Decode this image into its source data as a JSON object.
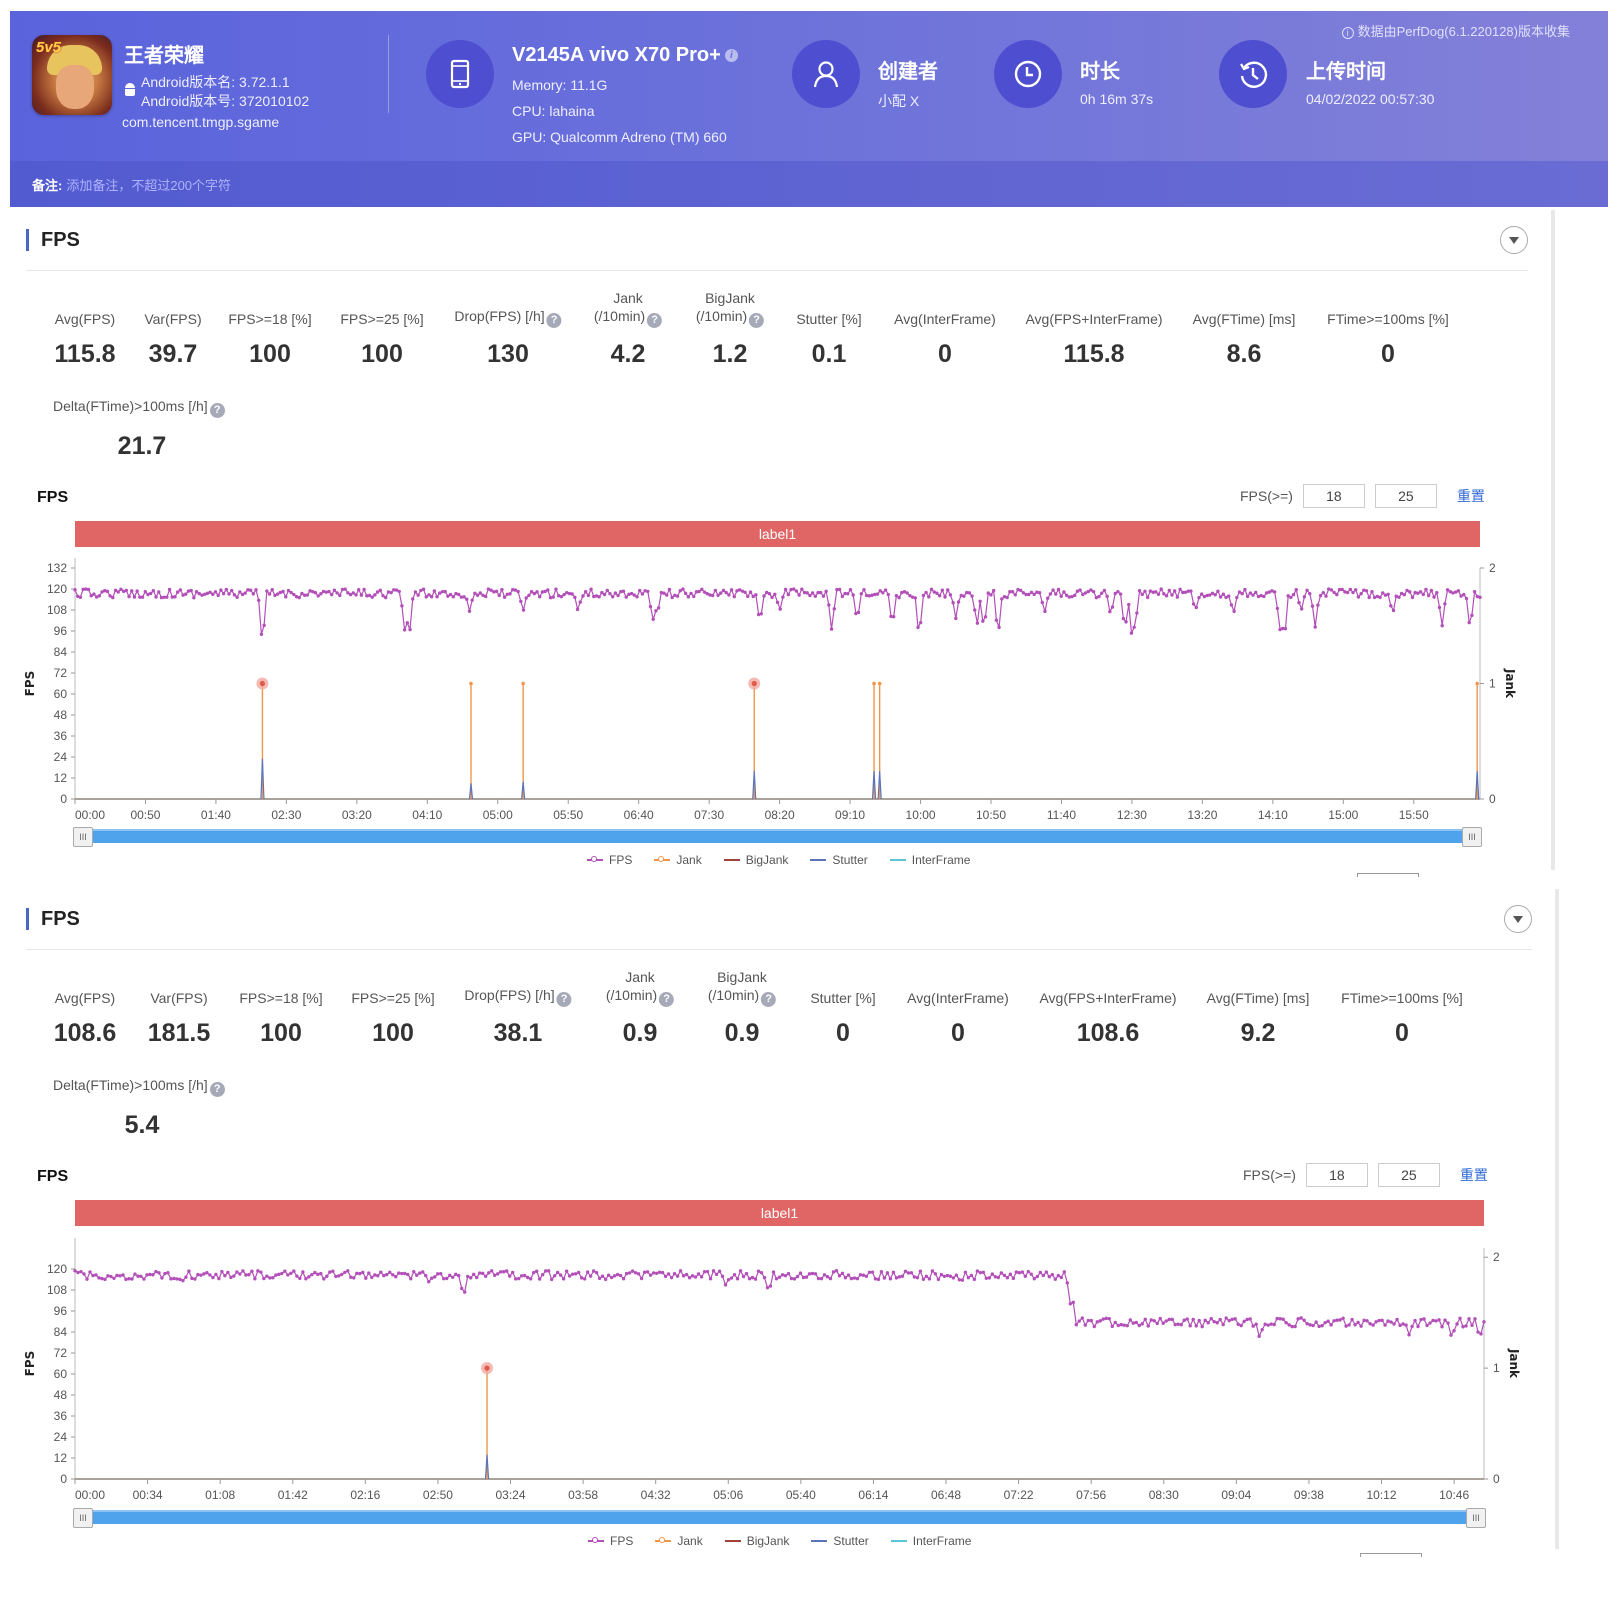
{
  "header": {
    "app_name": "王者荣耀",
    "android_version_name": "Android版本名: 3.72.1.1",
    "android_version_code": "Android版本号: 372010102",
    "package": "com.tencent.tmgp.sgame",
    "app_icon_tag": "5v5",
    "device_name": "V2145A vivo X70 Pro+",
    "memory": "Memory: 11.1G",
    "cpu": "CPU: lahaina",
    "gpu": "GPU: Qualcomm Adreno (TM) 660",
    "creator_title": "创建者",
    "creator_value": "小配 X",
    "duration_title": "时长",
    "duration_value": "0h 16m 37s",
    "upload_title": "上传时间",
    "upload_value": "04/02/2022 00:57:30",
    "collected_by": "数据由PerfDog(6.1.220128)版本收集",
    "notes_label": "备注:",
    "notes_placeholder": "添加备注，不超过200个字符"
  },
  "sections": [
    {
      "title": "FPS",
      "metrics": [
        {
          "label": "Avg(FPS)",
          "value": "115.8"
        },
        {
          "label": "Var(FPS)",
          "value": "39.7"
        },
        {
          "label": "FPS>=18 [%]",
          "value": "100"
        },
        {
          "label": "FPS>=25 [%]",
          "value": "100"
        },
        {
          "label": "Drop(FPS) [/h]",
          "value": "130",
          "help": true
        },
        {
          "label": "Jank",
          "label2": "(/10min)",
          "value": "4.2",
          "help": true
        },
        {
          "label": "BigJank",
          "label2": "(/10min)",
          "value": "1.2",
          "help": true
        },
        {
          "label": "Stutter [%]",
          "value": "0.1"
        },
        {
          "label": "Avg(InterFrame)",
          "value": "0"
        },
        {
          "label": "Avg(FPS+InterFrame)",
          "value": "115.8"
        },
        {
          "label": "Avg(FTime) [ms]",
          "value": "8.6"
        },
        {
          "label": "FTime>=100ms [%]",
          "value": "0"
        }
      ],
      "delta_metric": {
        "label": "Delta(FTime)>100ms [/h]",
        "value": "21.7",
        "help": true
      },
      "chart_title": "FPS",
      "fps_threshold_label": "FPS(>=)",
      "fps_threshold_1": "18",
      "fps_threshold_2": "25",
      "reset_label": "重置",
      "label_bar": "label1"
    },
    {
      "title": "FPS",
      "metrics": [
        {
          "label": "Avg(FPS)",
          "value": "108.6"
        },
        {
          "label": "Var(FPS)",
          "value": "181.5"
        },
        {
          "label": "FPS>=18 [%]",
          "value": "100"
        },
        {
          "label": "FPS>=25 [%]",
          "value": "100"
        },
        {
          "label": "Drop(FPS) [/h]",
          "value": "38.1",
          "help": true
        },
        {
          "label": "Jank",
          "label2": "(/10min)",
          "value": "0.9",
          "help": true
        },
        {
          "label": "BigJank",
          "label2": "(/10min)",
          "value": "0.9",
          "help": true
        },
        {
          "label": "Stutter [%]",
          "value": "0"
        },
        {
          "label": "Avg(InterFrame)",
          "value": "0"
        },
        {
          "label": "Avg(FPS+InterFrame)",
          "value": "108.6"
        },
        {
          "label": "Avg(FTime) [ms]",
          "value": "9.2"
        },
        {
          "label": "FTime>=100ms [%]",
          "value": "0"
        }
      ],
      "delta_metric": {
        "label": "Delta(FTime)>100ms [/h]",
        "value": "5.4",
        "help": true
      },
      "chart_title": "FPS",
      "fps_threshold_label": "FPS(>=)",
      "fps_threshold_1": "18",
      "fps_threshold_2": "25",
      "reset_label": "重置",
      "label_bar": "label1"
    }
  ],
  "legend": [
    {
      "name": "FPS",
      "color": "#b34fb8",
      "marker": true
    },
    {
      "name": "Jank",
      "color": "#f0954a",
      "marker": true
    },
    {
      "name": "BigJank",
      "color": "#a0443a",
      "marker": false
    },
    {
      "name": "Stutter",
      "color": "#5b74b8",
      "marker": false
    },
    {
      "name": "InterFrame",
      "color": "#5cc6d6",
      "marker": false
    }
  ],
  "colors": {
    "fps": "#b34fb8",
    "jank": "#f0954a",
    "bigjank_marker": "#e05a4a",
    "stutter": "#5b74b8",
    "label_bar": "#e06666",
    "accent": "#4a67c5"
  },
  "chart_data": [
    {
      "type": "line",
      "title": "FPS",
      "xlabel": "",
      "ylabel": "FPS",
      "y2label": "Jank",
      "duration_seconds": 997,
      "x_ticks": [
        "00:00",
        "00:50",
        "01:40",
        "02:30",
        "03:20",
        "04:10",
        "05:00",
        "05:50",
        "06:40",
        "07:30",
        "08:20",
        "09:10",
        "10:00",
        "10:50",
        "11:40",
        "12:30",
        "13:20",
        "14:10",
        "15:00",
        "15:50"
      ],
      "y_ticks": [
        0,
        12,
        24,
        36,
        48,
        60,
        72,
        84,
        96,
        108,
        120,
        132
      ],
      "ylim": [
        0,
        132
      ],
      "y2_ticks": [
        0,
        1,
        2
      ],
      "y2lim": [
        0,
        2
      ],
      "baseline_fps": 118,
      "fps_dips": [
        {
          "t": 133,
          "fps": 87
        },
        {
          "t": 237,
          "fps": 90
        },
        {
          "t": 234,
          "fps": 96
        },
        {
          "t": 280,
          "fps": 107
        },
        {
          "t": 318,
          "fps": 107
        },
        {
          "t": 357,
          "fps": 107
        },
        {
          "t": 410,
          "fps": 101
        },
        {
          "t": 413,
          "fps": 104
        },
        {
          "t": 486,
          "fps": 100
        },
        {
          "t": 500,
          "fps": 107
        },
        {
          "t": 537,
          "fps": 96
        },
        {
          "t": 580,
          "fps": 98
        },
        {
          "t": 555,
          "fps": 101
        },
        {
          "t": 599,
          "fps": 91
        },
        {
          "t": 625,
          "fps": 103
        },
        {
          "t": 640,
          "fps": 98
        },
        {
          "t": 645,
          "fps": 96
        },
        {
          "t": 655,
          "fps": 92
        },
        {
          "t": 688,
          "fps": 106
        },
        {
          "t": 735,
          "fps": 104
        },
        {
          "t": 745,
          "fps": 95
        },
        {
          "t": 752,
          "fps": 95
        },
        {
          "t": 750,
          "fps": 92
        },
        {
          "t": 822,
          "fps": 105
        },
        {
          "t": 795,
          "fps": 107
        },
        {
          "t": 855,
          "fps": 96
        },
        {
          "t": 858,
          "fps": 88
        },
        {
          "t": 870,
          "fps": 107
        },
        {
          "t": 880,
          "fps": 98
        },
        {
          "t": 935,
          "fps": 105
        },
        {
          "t": 970,
          "fps": 98
        },
        {
          "t": 990,
          "fps": 96
        }
      ],
      "jank_events": [
        {
          "t": 133,
          "jank": 1,
          "bigjank": true,
          "stutter_fps_equiv": 23
        },
        {
          "t": 281,
          "jank": 1,
          "bigjank": false,
          "stutter_fps_equiv": 9
        },
        {
          "t": 318,
          "jank": 1,
          "bigjank": false,
          "stutter_fps_equiv": 10
        },
        {
          "t": 482,
          "jank": 1,
          "bigjank": true,
          "stutter_fps_equiv": 16
        },
        {
          "t": 567,
          "jank": 1,
          "bigjank": false,
          "stutter_fps_equiv": 16
        },
        {
          "t": 571,
          "jank": 1,
          "bigjank": false,
          "stutter_fps_equiv": 16
        },
        {
          "t": 995,
          "jank": 1,
          "bigjank": false,
          "stutter_fps_equiv": 16
        }
      ],
      "series": [
        "FPS",
        "Jank",
        "BigJank",
        "Stutter",
        "InterFrame"
      ],
      "legend_position": "bottom-center",
      "grid": false
    },
    {
      "type": "line",
      "title": "FPS",
      "xlabel": "",
      "ylabel": "FPS",
      "y2label": "Jank",
      "duration_seconds": 660,
      "x_ticks": [
        "00:00",
        "00:34",
        "01:08",
        "01:42",
        "02:16",
        "02:50",
        "03:24",
        "03:58",
        "04:32",
        "05:06",
        "05:40",
        "06:14",
        "06:48",
        "07:22",
        "07:56",
        "08:30",
        "09:04",
        "09:38",
        "10:12",
        "10:46"
      ],
      "y_ticks": [
        0,
        12,
        24,
        36,
        48,
        60,
        72,
        84,
        96,
        108,
        120
      ],
      "ylim": [
        0,
        132
      ],
      "y2_ticks": [
        0,
        1,
        2
      ],
      "y2lim": [
        0,
        2
      ],
      "segments": [
        {
          "from": 0,
          "to": 465,
          "baseline_fps": 117
        },
        {
          "from": 468,
          "to": 660,
          "baseline_fps": 90
        }
      ],
      "fps_dips": [
        {
          "t": 13,
          "fps": 114
        },
        {
          "t": 50,
          "fps": 112
        },
        {
          "t": 166,
          "fps": 112
        },
        {
          "t": 182,
          "fps": 103
        },
        {
          "t": 305,
          "fps": 110
        },
        {
          "t": 325,
          "fps": 106
        },
        {
          "t": 415,
          "fps": 112
        },
        {
          "t": 466,
          "fps": 105
        },
        {
          "t": 555,
          "fps": 80
        },
        {
          "t": 625,
          "fps": 82
        },
        {
          "t": 645,
          "fps": 80
        },
        {
          "t": 658,
          "fps": 80
        }
      ],
      "jank_events": [
        {
          "t": 193,
          "jank": 1,
          "bigjank": true,
          "stutter_fps_equiv": 14
        }
      ],
      "series": [
        "FPS",
        "Jank",
        "BigJank",
        "Stutter",
        "InterFrame"
      ],
      "legend_position": "bottom-center",
      "grid": false
    }
  ]
}
